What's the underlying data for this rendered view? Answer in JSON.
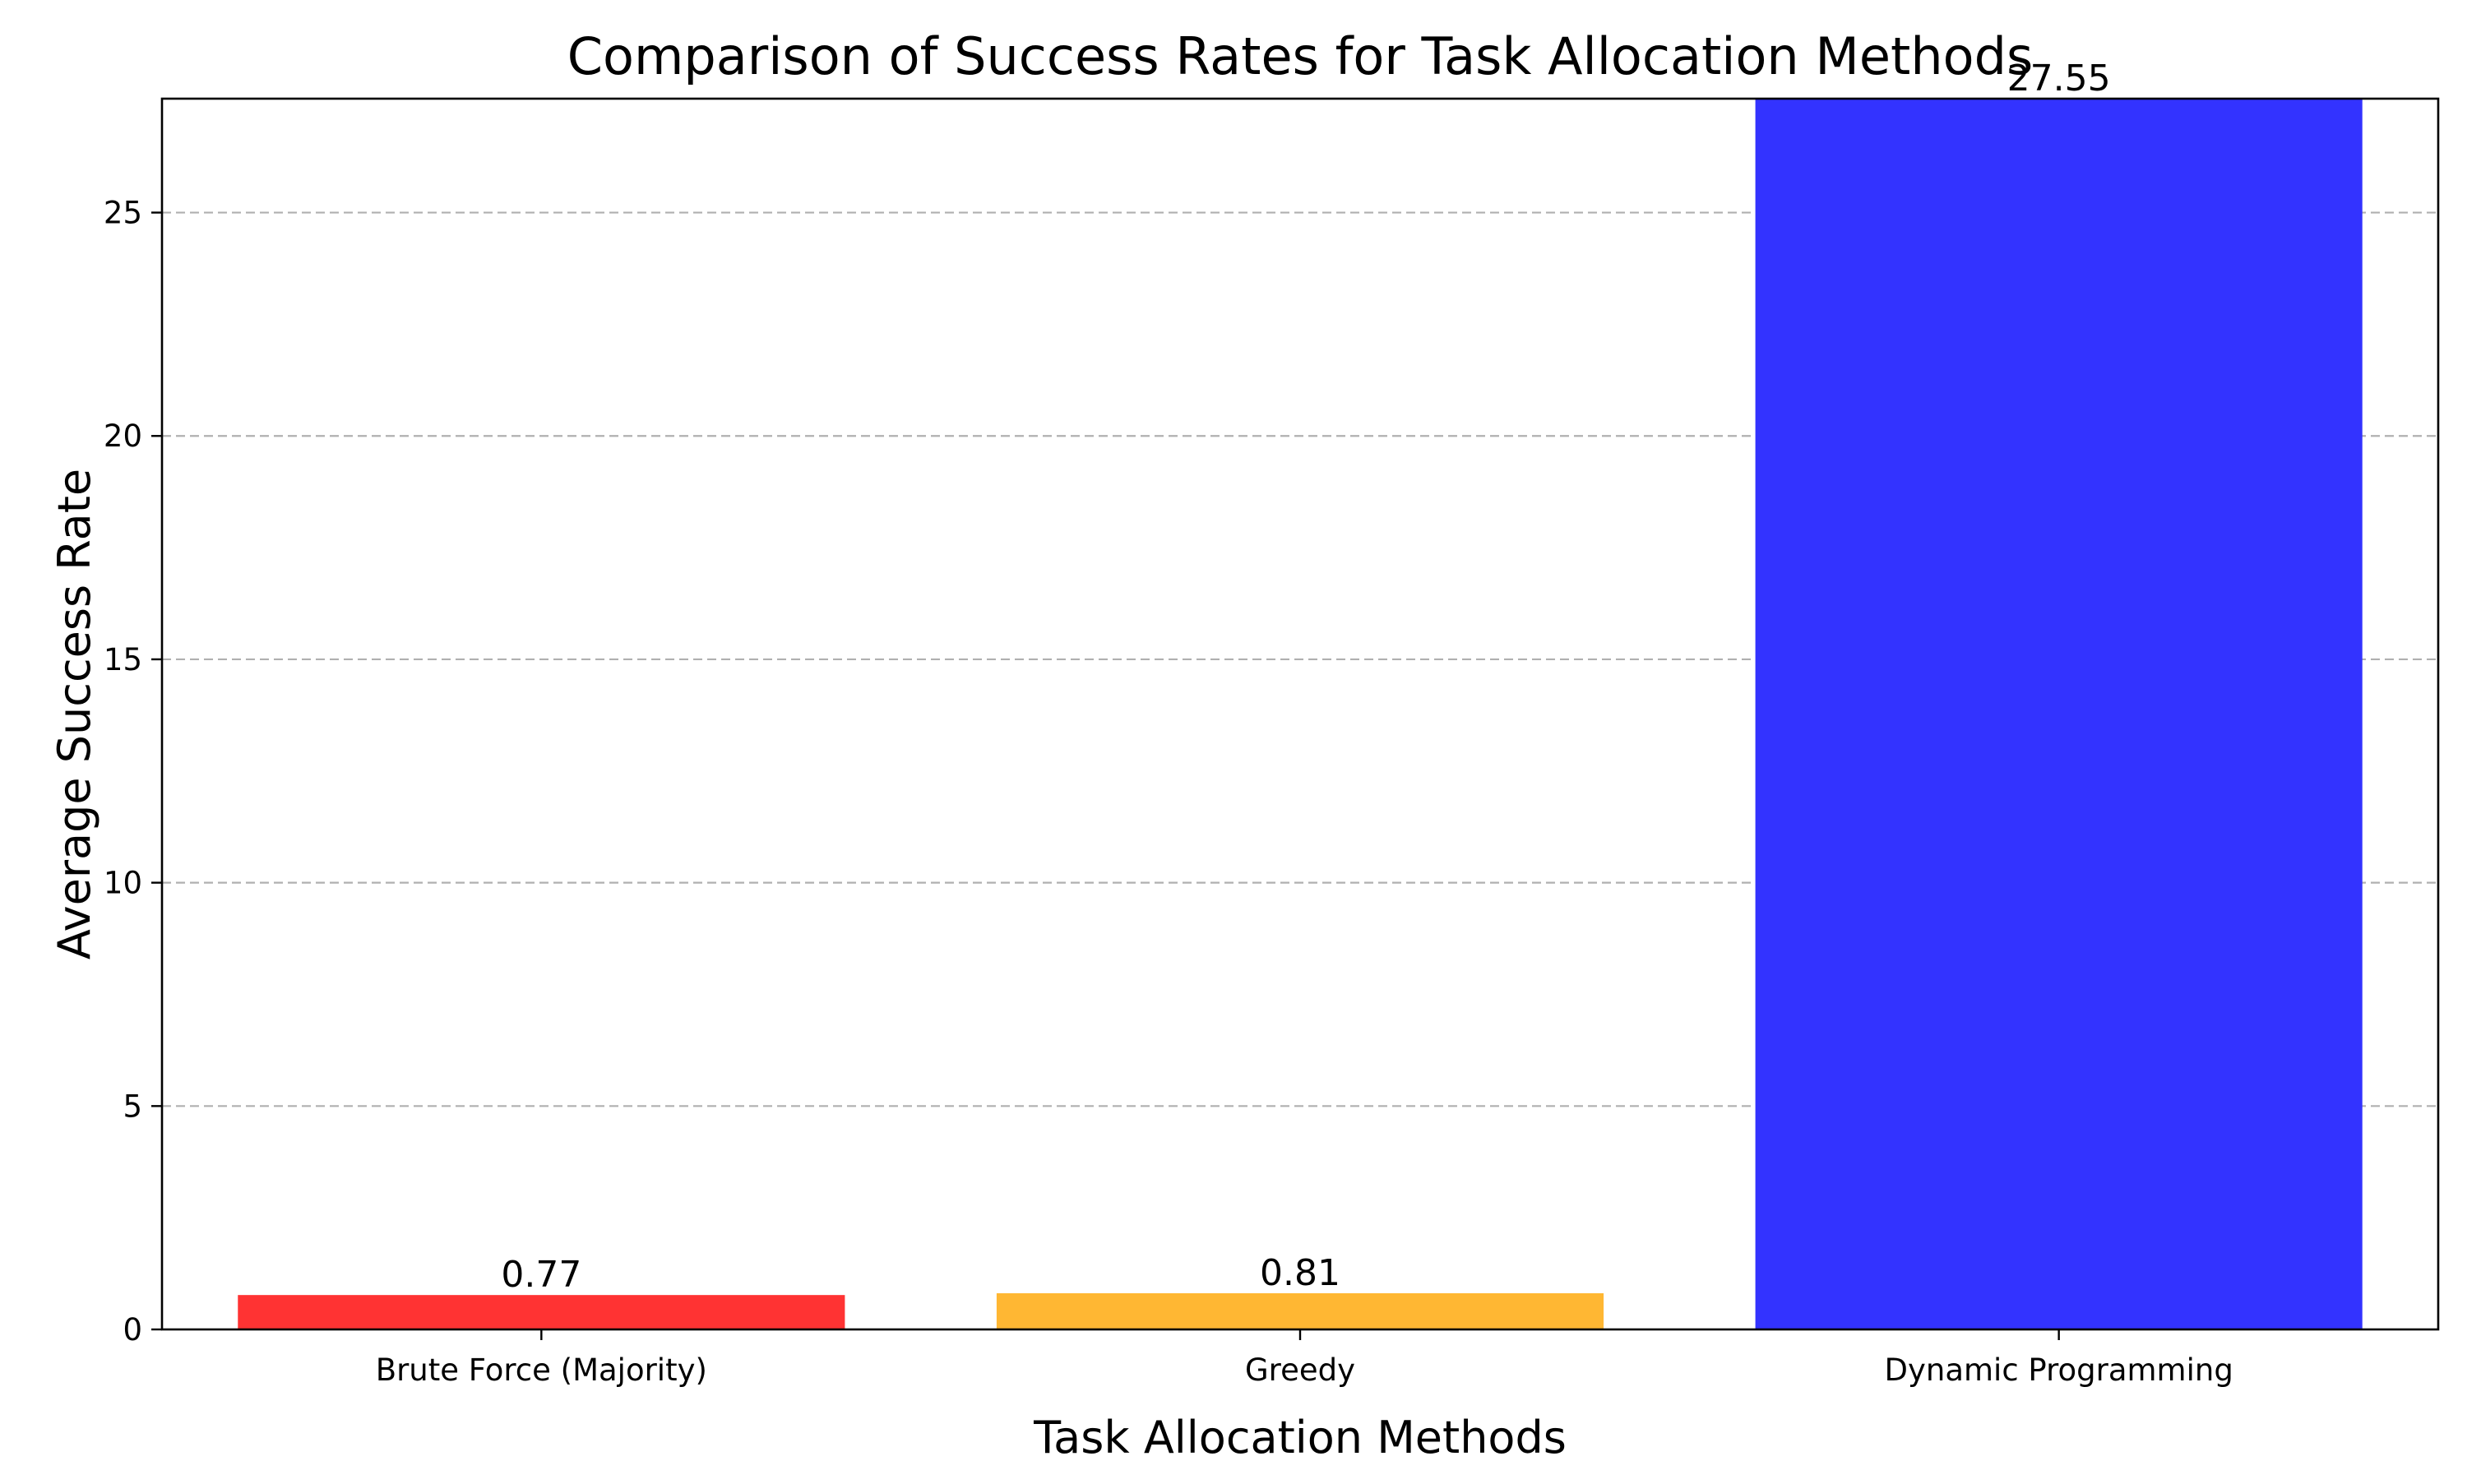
{
  "chart_data": {
    "type": "bar",
    "title": "Comparison of Success Rates for Task Allocation Methods",
    "xlabel": "Task Allocation Methods",
    "ylabel": "Average Success Rate",
    "categories": [
      "Brute Force (Majority)",
      "Greedy",
      "Dynamic Programming"
    ],
    "values": [
      0.77,
      0.81,
      27.55
    ],
    "value_labels": [
      "0.77",
      "0.81",
      "27.55"
    ],
    "colors": [
      "#ff3333",
      "#ffb733",
      "#3333ff"
    ],
    "ylim": [
      0,
      27.55
    ],
    "yticks": [
      0,
      5,
      10,
      15,
      20,
      25
    ],
    "grid": "y-dashed",
    "legend": "none"
  }
}
